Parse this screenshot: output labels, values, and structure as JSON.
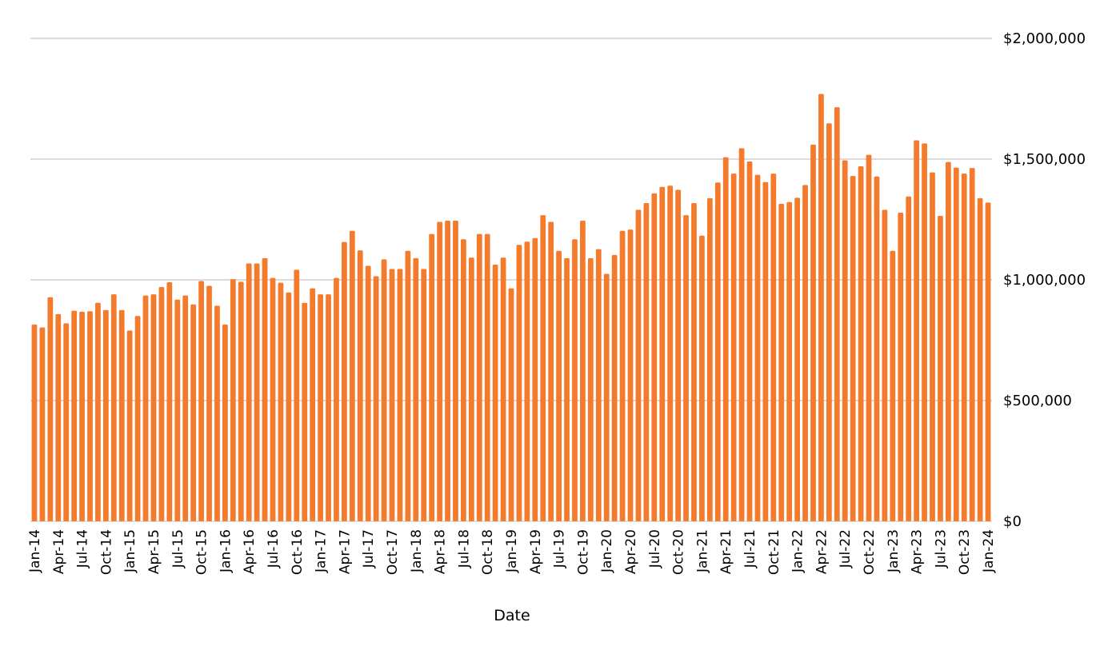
{
  "chart_data": {
    "type": "bar",
    "title": "",
    "xlabel": "Date",
    "ylabel": "",
    "ylim": [
      0,
      2000000
    ],
    "y_ticks": [
      0,
      500000,
      1000000,
      1500000,
      2000000
    ],
    "y_tick_labels": [
      "$0",
      "$500,000",
      "$1,000,000",
      "$1,500,000",
      "$2,000,000"
    ],
    "y_axis_side": "right",
    "grid": true,
    "legend": "none",
    "bar_color": "#f47b2c",
    "x_tick_labels": [
      "Jan-14",
      "Apr-14",
      "Jul-14",
      "Oct-14",
      "Jan-15",
      "Apr-15",
      "Jul-15",
      "Oct-15",
      "Jan-16",
      "Apr-16",
      "Jul-16",
      "Oct-16",
      "Jan-17",
      "Apr-17",
      "Jul-17",
      "Oct-17",
      "Jan-18",
      "Apr-18",
      "Jul-18",
      "Oct-18",
      "Jan-19",
      "Apr-19",
      "Jul-19",
      "Oct-19",
      "Jan-20",
      "Apr-20",
      "Jul-20",
      "Oct-20",
      "Jan-21",
      "Apr-21",
      "Jul-21",
      "Oct-21",
      "Jan-22",
      "Apr-22",
      "Jul-22",
      "Oct-22",
      "Jan-23",
      "Apr-23",
      "Jul-23",
      "Oct-23",
      "Jan-24"
    ],
    "categories": [
      "Jan-14",
      "Feb-14",
      "Mar-14",
      "Apr-14",
      "May-14",
      "Jun-14",
      "Jul-14",
      "Aug-14",
      "Sep-14",
      "Oct-14",
      "Nov-14",
      "Dec-14",
      "Jan-15",
      "Feb-15",
      "Mar-15",
      "Apr-15",
      "May-15",
      "Jun-15",
      "Jul-15",
      "Aug-15",
      "Sep-15",
      "Oct-15",
      "Nov-15",
      "Dec-15",
      "Jan-16",
      "Feb-16",
      "Mar-16",
      "Apr-16",
      "May-16",
      "Jun-16",
      "Jul-16",
      "Aug-16",
      "Sep-16",
      "Oct-16",
      "Nov-16",
      "Dec-16",
      "Jan-17",
      "Feb-17",
      "Mar-17",
      "Apr-17",
      "May-17",
      "Jun-17",
      "Jul-17",
      "Aug-17",
      "Sep-17",
      "Oct-17",
      "Nov-17",
      "Dec-17",
      "Jan-18",
      "Feb-18",
      "Mar-18",
      "Apr-18",
      "May-18",
      "Jun-18",
      "Jul-18",
      "Aug-18",
      "Sep-18",
      "Oct-18",
      "Nov-18",
      "Dec-18",
      "Jan-19",
      "Feb-19",
      "Mar-19",
      "Apr-19",
      "May-19",
      "Jun-19",
      "Jul-19",
      "Aug-19",
      "Sep-19",
      "Oct-19",
      "Nov-19",
      "Dec-19",
      "Jan-20",
      "Feb-20",
      "Mar-20",
      "Apr-20",
      "May-20",
      "Jun-20",
      "Jul-20",
      "Aug-20",
      "Sep-20",
      "Oct-20",
      "Nov-20",
      "Dec-20",
      "Jan-21",
      "Feb-21",
      "Mar-21",
      "Apr-21",
      "May-21",
      "Jun-21",
      "Jul-21",
      "Aug-21",
      "Sep-21",
      "Oct-21",
      "Nov-21",
      "Dec-21",
      "Jan-22",
      "Feb-22",
      "Mar-22",
      "Apr-22",
      "May-22",
      "Jun-22",
      "Jul-22",
      "Aug-22",
      "Sep-22",
      "Oct-22",
      "Nov-22",
      "Dec-22",
      "Jan-23",
      "Feb-23",
      "Mar-23",
      "Apr-23",
      "May-23",
      "Jun-23",
      "Jul-23",
      "Aug-23",
      "Sep-23",
      "Oct-23",
      "Nov-23",
      "Dec-23",
      "Jan-24"
    ],
    "values": [
      815000,
      803000,
      928000,
      858000,
      820000,
      872000,
      868000,
      870000,
      905000,
      875000,
      940000,
      875000,
      790000,
      850000,
      935000,
      940000,
      970000,
      990000,
      918000,
      935000,
      898000,
      995000,
      975000,
      893000,
      815000,
      1003000,
      992000,
      1068000,
      1068000,
      1090000,
      1008000,
      988000,
      948000,
      1042000,
      905000,
      965000,
      940000,
      940000,
      1008000,
      1157000,
      1203000,
      1122000,
      1058000,
      1015000,
      1085000,
      1045000,
      1045000,
      1120000,
      1090000,
      1045000,
      1190000,
      1240000,
      1245000,
      1245000,
      1168000,
      1092000,
      1190000,
      1190000,
      1063000,
      1092000,
      965000,
      1145000,
      1158000,
      1173000,
      1268000,
      1240000,
      1120000,
      1090000,
      1168000,
      1245000,
      1090000,
      1127000,
      1025000,
      1103000,
      1203000,
      1208000,
      1290000,
      1318000,
      1358000,
      1385000,
      1390000,
      1373000,
      1268000,
      1318000,
      1183000,
      1338000,
      1403000,
      1508000,
      1440000,
      1545000,
      1490000,
      1435000,
      1405000,
      1440000,
      1315000,
      1322000,
      1340000,
      1393000,
      1560000,
      1770000,
      1648000,
      1715000,
      1495000,
      1430000,
      1470000,
      1518000,
      1428000,
      1290000,
      1120000,
      1278000,
      1345000,
      1578000,
      1565000,
      1445000,
      1265000,
      1488000,
      1465000,
      1440000,
      1463000,
      1338000,
      1320000
    ]
  }
}
